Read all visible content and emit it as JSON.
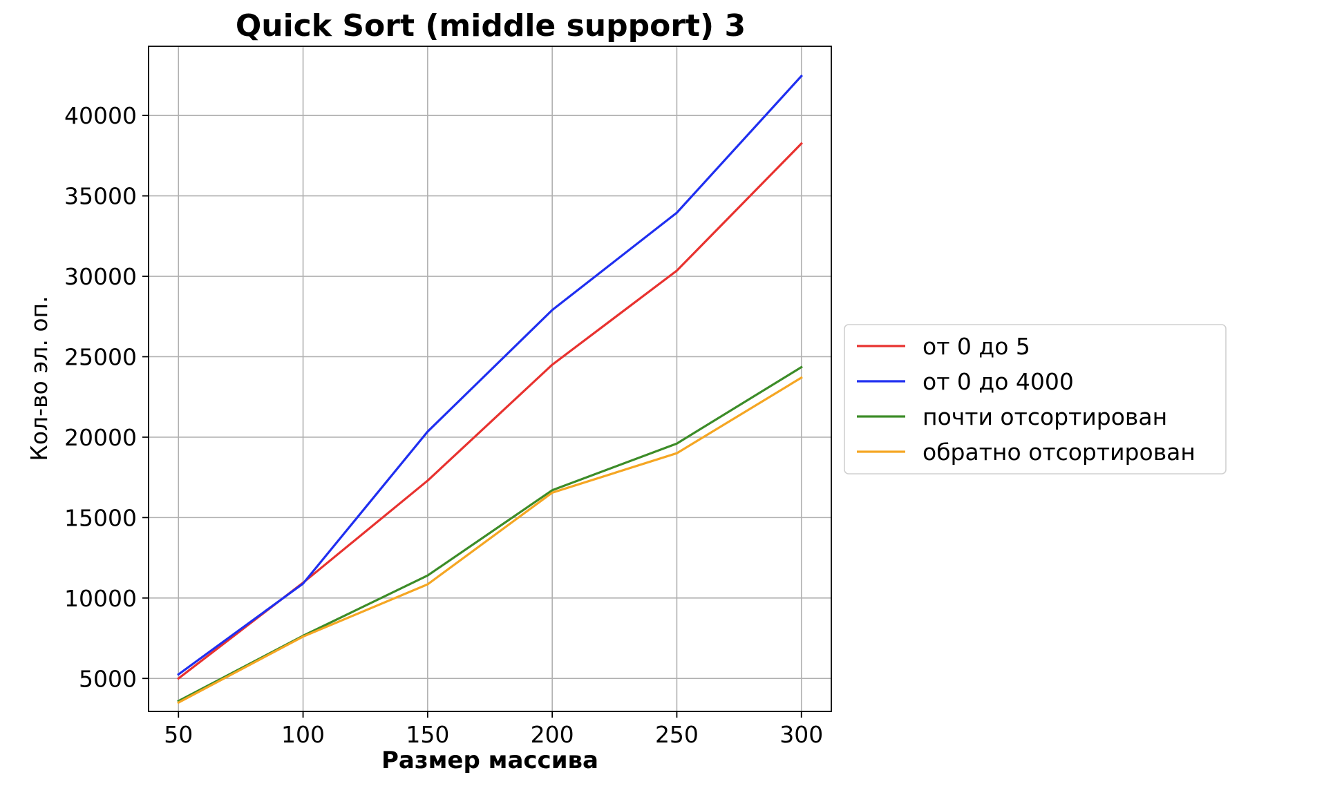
{
  "chart_data": {
    "type": "line",
    "title": "Quick Sort (middle support) 3",
    "xlabel": "Размер массива",
    "ylabel": "Кол-во эл. оп.",
    "x": [
      50,
      100,
      150,
      200,
      250,
      300
    ],
    "xticks": [
      50,
      100,
      150,
      200,
      250,
      300
    ],
    "xtick_labels": [
      "50",
      "100",
      "150",
      "200",
      "250",
      "300"
    ],
    "yticks": [
      5000,
      10000,
      15000,
      20000,
      25000,
      30000,
      35000,
      40000
    ],
    "ytick_labels": [
      "5000",
      "10000",
      "15000",
      "20000",
      "25000",
      "30000",
      "35000",
      "40000"
    ],
    "xlim": [
      38,
      312
    ],
    "ylim": [
      2950,
      44300
    ],
    "grid": true,
    "legend_position": "center-right-outside",
    "series": [
      {
        "name": "от 0 до 5",
        "color": "#e8322f",
        "values": [
          5000,
          10950,
          17300,
          24500,
          30350,
          38250
        ]
      },
      {
        "name": "от 0 до 4000",
        "color": "#1f2ff0",
        "values": [
          5250,
          10900,
          20350,
          27900,
          33950,
          42450
        ]
      },
      {
        "name": "почти отсортирован",
        "color": "#3c8c28",
        "values": [
          3600,
          7650,
          11400,
          16700,
          19600,
          24350
        ]
      },
      {
        "name": "обратно отсортирован",
        "color": "#f5a623",
        "values": [
          3500,
          7600,
          10850,
          16550,
          19000,
          23700
        ]
      }
    ]
  }
}
